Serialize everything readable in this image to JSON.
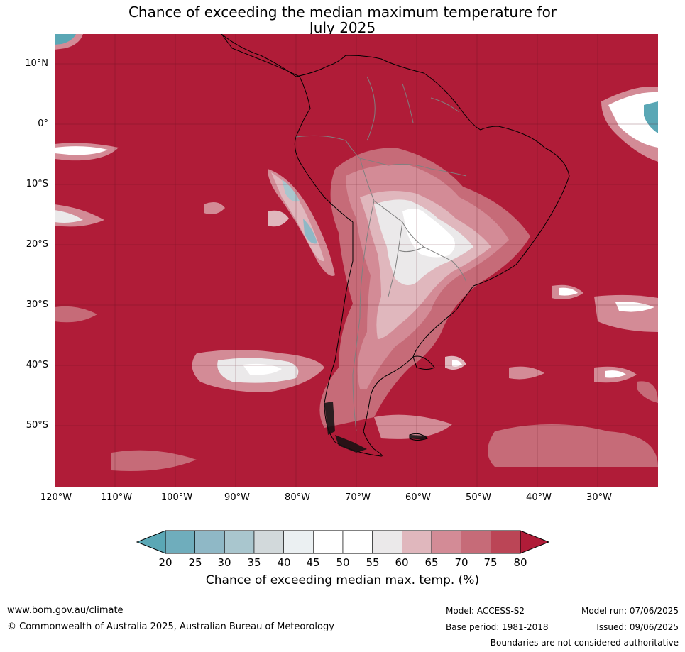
{
  "title": {
    "line1": "Chance of exceeding the median maximum temperature for",
    "line2": "July 2025"
  },
  "map": {
    "lat_labels": [
      "10°N",
      "0°",
      "10°S",
      "20°S",
      "30°S",
      "40°S",
      "50°S"
    ],
    "lon_labels": [
      "120°W",
      "110°W",
      "100°W",
      "90°W",
      "80°W",
      "70°W",
      "60°W",
      "50°W",
      "40°W",
      "30°W"
    ]
  },
  "colorbar": {
    "ticks": [
      "20",
      "25",
      "30",
      "35",
      "40",
      "45",
      "50",
      "55",
      "60",
      "65",
      "70",
      "75",
      "80"
    ],
    "colors": [
      "#5aa7b5",
      "#6fadbc",
      "#8fb8c6",
      "#a9c6ce",
      "#d2d9db",
      "#ebf0f2",
      "#ffffff",
      "#ffffff",
      "#ebe9ea",
      "#e0b7bd",
      "#d38b96",
      "#c66b78",
      "#bb4556",
      "#b01c38"
    ],
    "label": "Chance of exceeding median max. temp. (%)"
  },
  "footer": {
    "website": "www.bom.gov.au/climate",
    "copyright": "© Commonwealth of Australia 2025, Australian Bureau of Meteorology",
    "model": "Model: ACCESS-S2",
    "base_period": "Base period: 1981-2018",
    "model_run": "Model run: 07/06/2025",
    "issued": "Issued: 09/06/2025",
    "disclaimer": "Boundaries are not considered authoritative"
  }
}
